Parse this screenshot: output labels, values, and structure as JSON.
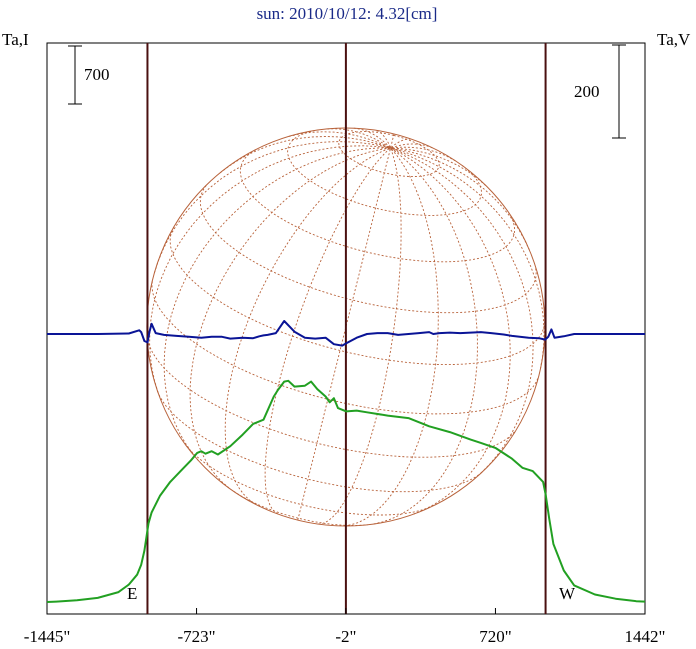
{
  "chart_data": {
    "type": "line",
    "title": "sun: 2010/10/12: 4.32[cm]",
    "ylabel_left": "Ta,I",
    "ylabel_right": "Ta,V",
    "scale_bar_left": "700",
    "scale_bar_right": "200",
    "marker_east": "E",
    "marker_west": "W",
    "x_ticks": [
      "-1445\"",
      "-723\"",
      "-2\"",
      "720\"",
      "1442\""
    ],
    "x_tick_values": [
      -1445,
      -723,
      -2,
      720,
      1442
    ],
    "xlim": [
      -1445,
      1442
    ],
    "vertical_lines": [
      -960,
      -2,
      962
    ],
    "colors": {
      "intensity": "#22a022",
      "polarization": "#0a1496",
      "disk": "#b8623a",
      "vline": "#4a1010",
      "title": "#1a2a88"
    },
    "series": [
      {
        "key": "intensity",
        "x": [
          -1445,
          -1400,
          -1300,
          -1200,
          -1100,
          -1050,
          -1010,
          -990,
          -975,
          -965,
          -955,
          -940,
          -900,
          -850,
          -800,
          -750,
          -720,
          -700,
          -680,
          -650,
          -620,
          -560,
          -500,
          -450,
          -400,
          -350,
          -330,
          -300,
          -280,
          -250,
          -200,
          -170,
          -140,
          -100,
          -80,
          -60,
          -40,
          0,
          50,
          100,
          200,
          300,
          400,
          500,
          600,
          650,
          720,
          800,
          850,
          900,
          950,
          962,
          980,
          1000,
          1050,
          1100,
          1200,
          1300,
          1400,
          1442
        ],
        "y": [
          0,
          5,
          20,
          50,
          120,
          210,
          330,
          450,
          620,
          780,
          950,
          1080,
          1280,
          1450,
          1580,
          1710,
          1800,
          1820,
          1790,
          1820,
          1780,
          1880,
          2020,
          2150,
          2200,
          2480,
          2560,
          2660,
          2670,
          2600,
          2610,
          2660,
          2570,
          2480,
          2410,
          2460,
          2340,
          2300,
          2310,
          2290,
          2250,
          2220,
          2120,
          2050,
          1960,
          1920,
          1860,
          1730,
          1620,
          1580,
          1450,
          1300,
          1000,
          700,
          380,
          200,
          90,
          40,
          10,
          5
        ]
      },
      {
        "key": "polarization",
        "x": [
          -1445,
          -1200,
          -1050,
          -1000,
          -990,
          -975,
          -960,
          -950,
          -940,
          -920,
          -880,
          -820,
          -760,
          -700,
          -650,
          -600,
          -560,
          -500,
          -450,
          -420,
          -400,
          -380,
          -340,
          -300,
          -250,
          -200,
          -150,
          -100,
          -60,
          -20,
          0,
          50,
          100,
          150,
          200,
          250,
          300,
          350,
          400,
          420,
          450,
          500,
          550,
          600,
          650,
          700,
          760,
          800,
          880,
          930,
          960,
          975,
          990,
          1005,
          1050,
          1100,
          1200,
          1300,
          1442
        ],
        "y": [
          0,
          0,
          1,
          8,
          4,
          -15,
          -18,
          5,
          22,
          2,
          -2,
          -4,
          -6,
          -8,
          -6,
          -6,
          -10,
          -8,
          -9,
          -5,
          -3,
          -2,
          2,
          28,
          5,
          -8,
          -10,
          -8,
          -22,
          -25,
          -20,
          -8,
          0,
          2,
          2,
          -2,
          0,
          2,
          4,
          0,
          2,
          3,
          2,
          3,
          4,
          2,
          -1,
          -4,
          -8,
          -9,
          -12,
          -6,
          10,
          -8,
          -5,
          0,
          0,
          0,
          0
        ]
      }
    ]
  }
}
